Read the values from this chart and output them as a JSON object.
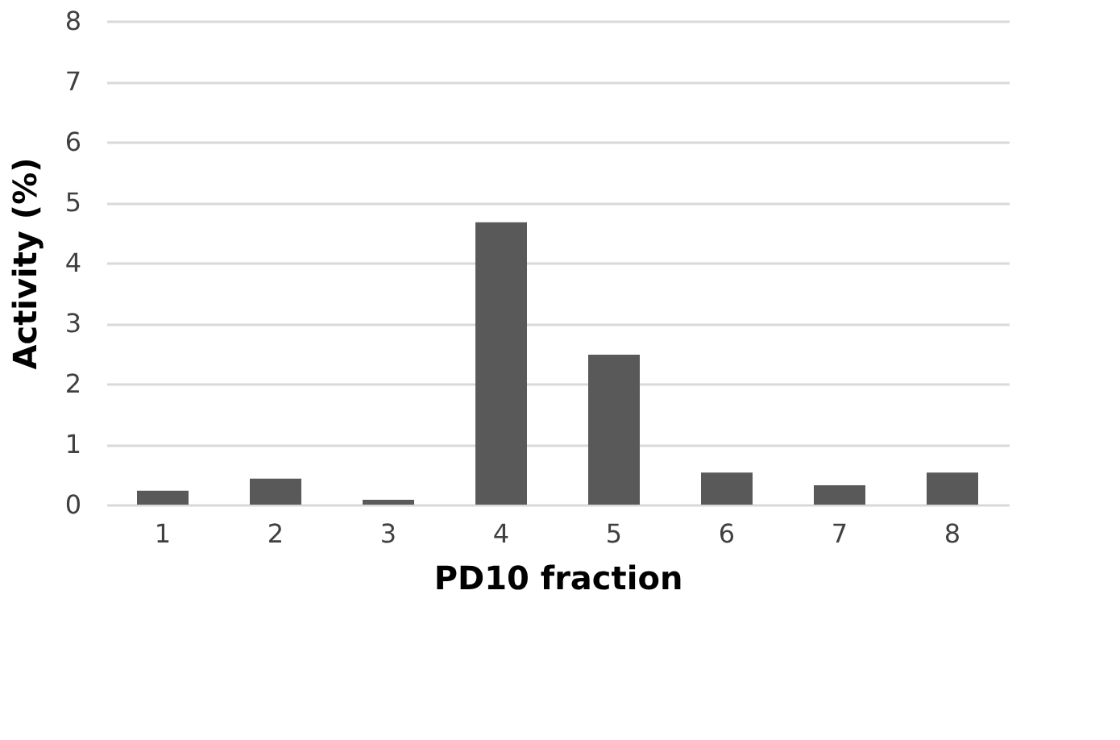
{
  "chart_data": {
    "type": "bar",
    "xlabel": "PD10 fraction",
    "ylabel": "Activity (%)",
    "categories": [
      "1",
      "2",
      "3",
      "4",
      "5",
      "6",
      "7",
      "8"
    ],
    "values": [
      0.23,
      0.43,
      0.08,
      4.67,
      2.48,
      0.53,
      0.32,
      0.53
    ],
    "color": "#595959",
    "ylim": [
      0,
      8
    ],
    "yticks": [
      0,
      1,
      2,
      3,
      4,
      5,
      6,
      7,
      8
    ],
    "grid": "y"
  }
}
